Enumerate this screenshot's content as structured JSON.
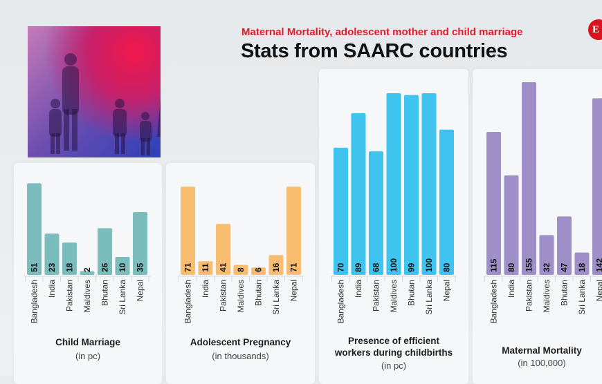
{
  "header": {
    "kicker": "Maternal Mortality, adolescent mother and child marriage",
    "title": "Stats from SAARC countries",
    "logo_letter": "E"
  },
  "chart_data": [
    {
      "type": "bar",
      "title": "Child Marriage",
      "subtitle": "(in pc)",
      "color": "#7bbcbc",
      "categories": [
        "Bangladesh",
        "India",
        "Pakistan",
        "Maldives",
        "Bhutan",
        "Sri Lanka",
        "Nepal"
      ],
      "values": [
        51,
        23,
        18,
        2,
        26,
        10,
        35
      ]
    },
    {
      "type": "bar",
      "title": "Adolescent Pregnancy",
      "subtitle": "(in thousands)",
      "color": "#f9bd72",
      "categories": [
        "Bangladesh",
        "India",
        "Pakistan",
        "Maldives",
        "Bhutan",
        "Sri Lanka",
        "Nepal"
      ],
      "values": [
        71,
        11,
        41,
        8,
        6,
        16,
        71
      ]
    },
    {
      "type": "bar",
      "title": "Presence of efficient workers during childbirths",
      "title_lines": [
        "Presence of efficient",
        "workers during childbirths"
      ],
      "subtitle": "(in pc)",
      "color": "#3fc3ef",
      "categories": [
        "Bangladesh",
        "India",
        "Pakistan",
        "Maldives",
        "Bhutan",
        "Sri Lanka",
        "Nepal"
      ],
      "values": [
        70,
        89,
        68,
        100,
        99,
        100,
        80
      ]
    },
    {
      "type": "bar",
      "title": "Maternal Mortality",
      "subtitle": "(in 100,000)",
      "color": "#9e8fc8",
      "categories": [
        "Bangladesh",
        "India",
        "Pakistan",
        "Maldives",
        "Bhutan",
        "Sri Lanka",
        "Nepal"
      ],
      "values": [
        115,
        80,
        155,
        32,
        47,
        18,
        142
      ]
    }
  ]
}
